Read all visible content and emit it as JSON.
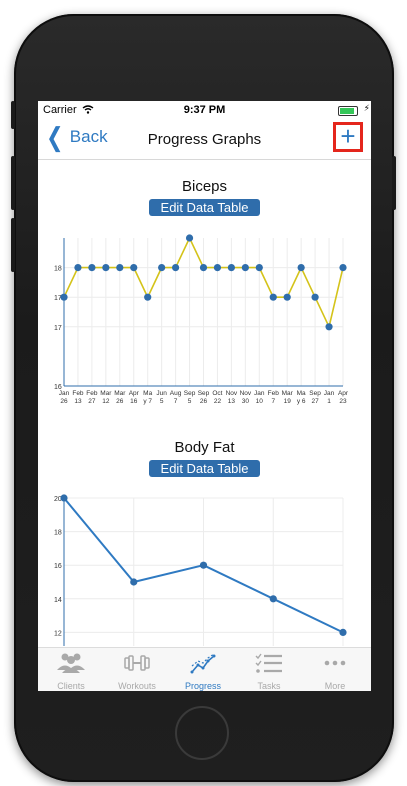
{
  "status": {
    "carrier": "Carrier",
    "time": "9:37 PM",
    "charge_glyph": "⚡"
  },
  "nav": {
    "back_label": "Back",
    "title": "Progress Graphs",
    "add_label": "+"
  },
  "edit_label": "Edit Data Table",
  "charts": [
    {
      "type": "line",
      "title": "Biceps",
      "line_color": "#d4c31a",
      "point_color": "#2f6dab",
      "ylim": [
        16,
        18.5
      ],
      "yticks": [
        "18",
        "17",
        "17",
        "16"
      ],
      "x_labels": [
        [
          "Jan",
          "26"
        ],
        [
          "Feb",
          "13"
        ],
        [
          "Feb",
          "27"
        ],
        [
          "Mar",
          "12"
        ],
        [
          "Mar",
          "26"
        ],
        [
          "Apr",
          "16"
        ],
        [
          "Ma",
          "y 7"
        ],
        [
          "Jun",
          "5"
        ],
        [
          "Aug",
          "7"
        ],
        [
          "Sep",
          "5"
        ],
        [
          "Sep",
          "26"
        ],
        [
          "Oct",
          "22"
        ],
        [
          "Nov",
          "13"
        ],
        [
          "Nov",
          "30"
        ],
        [
          "Jan",
          "10"
        ],
        [
          "Feb",
          "7"
        ],
        [
          "Mar",
          "19"
        ],
        [
          "Ma",
          "y 6"
        ],
        [
          "Sep",
          "27"
        ],
        [
          "Jan",
          "1"
        ],
        [
          "Apr",
          "23"
        ]
      ],
      "values": [
        17.5,
        18,
        18,
        18,
        18,
        18,
        17.5,
        18,
        18,
        18.5,
        18,
        18,
        18,
        18,
        18,
        17.5,
        17.5,
        18,
        17.5,
        17,
        18
      ]
    },
    {
      "type": "line",
      "title": "Body Fat",
      "line_color": "#2f7ac2",
      "point_color": "#2f6dab",
      "ylim": [
        11,
        20
      ],
      "yticks": [
        "20",
        "18",
        "16",
        "14",
        "12"
      ],
      "ytick_values": [
        20,
        18,
        16,
        14,
        12
      ],
      "values": [
        20,
        15,
        16,
        14,
        12
      ]
    }
  ],
  "tabs": [
    {
      "label": "Clients",
      "icon": "clients-icon",
      "active": false
    },
    {
      "label": "Workouts",
      "icon": "dumbbell-icon",
      "active": false
    },
    {
      "label": "Progress",
      "icon": "progress-graph-icon",
      "active": true
    },
    {
      "label": "Tasks",
      "icon": "tasks-list-icon",
      "active": false
    },
    {
      "label": "More",
      "icon": "more-icon",
      "active": false
    }
  ]
}
